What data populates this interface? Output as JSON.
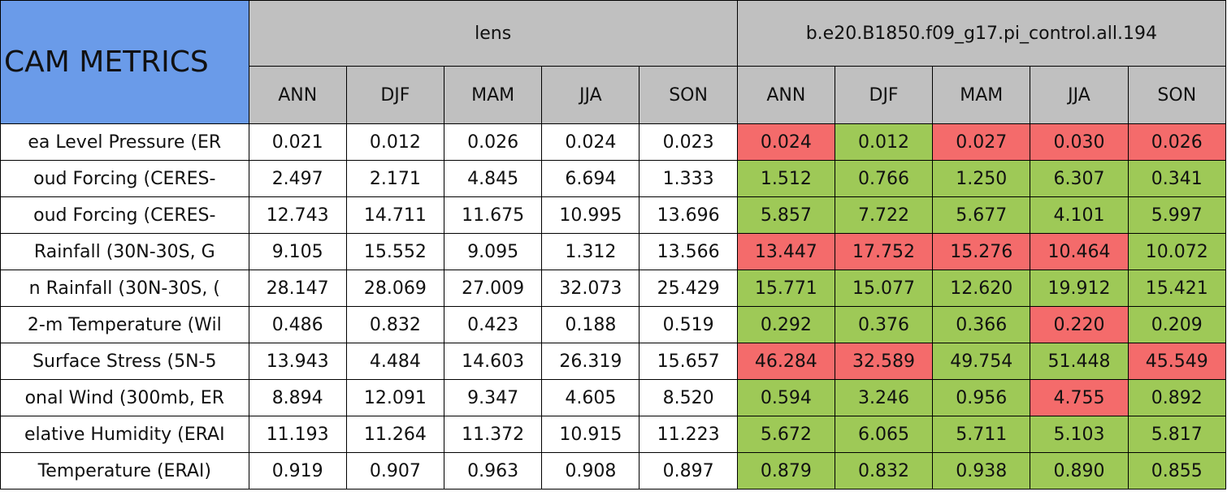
{
  "table": {
    "corner": "CAM METRICS",
    "groups": [
      "lens",
      "b.e20.B1850.f09_g17.pi_control.all.194"
    ],
    "seasons": [
      "ANN",
      "DJF",
      "MAM",
      "JJA",
      "SON"
    ],
    "colors": {
      "worse": "#f46b6b",
      "better": "#9ec957"
    },
    "rows": [
      {
        "label": "ea Level Pressure (ER",
        "lens": [
          "0.021",
          "0.012",
          "0.026",
          "0.024",
          "0.023"
        ],
        "control": [
          "0.024",
          "0.012",
          "0.027",
          "0.030",
          "0.026"
        ],
        "status": [
          "worse",
          "better",
          "worse",
          "worse",
          "worse"
        ]
      },
      {
        "label": "oud Forcing (CERES-",
        "lens": [
          "2.497",
          "2.171",
          "4.845",
          "6.694",
          "1.333"
        ],
        "control": [
          "1.512",
          "0.766",
          "1.250",
          "6.307",
          "0.341"
        ],
        "status": [
          "better",
          "better",
          "better",
          "better",
          "better"
        ]
      },
      {
        "label": "oud Forcing (CERES-",
        "lens": [
          "12.743",
          "14.711",
          "11.675",
          "10.995",
          "13.696"
        ],
        "control": [
          "5.857",
          "7.722",
          "5.677",
          "4.101",
          "5.997"
        ],
        "status": [
          "better",
          "better",
          "better",
          "better",
          "better"
        ]
      },
      {
        "label": "Rainfall (30N-30S, G",
        "lens": [
          "9.105",
          "15.552",
          "9.095",
          "1.312",
          "13.566"
        ],
        "control": [
          "13.447",
          "17.752",
          "15.276",
          "10.464",
          "10.072"
        ],
        "status": [
          "worse",
          "worse",
          "worse",
          "worse",
          "better"
        ]
      },
      {
        "label": "n Rainfall (30N-30S, (",
        "lens": [
          "28.147",
          "28.069",
          "27.009",
          "32.073",
          "25.429"
        ],
        "control": [
          "15.771",
          "15.077",
          "12.620",
          "19.912",
          "15.421"
        ],
        "status": [
          "better",
          "better",
          "better",
          "better",
          "better"
        ]
      },
      {
        "label": "2-m Temperature (Wil",
        "lens": [
          "0.486",
          "0.832",
          "0.423",
          "0.188",
          "0.519"
        ],
        "control": [
          "0.292",
          "0.376",
          "0.366",
          "0.220",
          "0.209"
        ],
        "status": [
          "better",
          "better",
          "better",
          "worse",
          "better"
        ]
      },
      {
        "label": "Surface Stress (5N-5",
        "lens": [
          "13.943",
          "4.484",
          "14.603",
          "26.319",
          "15.657"
        ],
        "control": [
          "46.284",
          "32.589",
          "49.754",
          "51.448",
          "45.549"
        ],
        "status": [
          "worse",
          "worse",
          "better",
          "better",
          "worse"
        ]
      },
      {
        "label": "onal Wind (300mb, ER",
        "lens": [
          "8.894",
          "12.091",
          "9.347",
          "4.605",
          "8.520"
        ],
        "control": [
          "0.594",
          "3.246",
          "0.956",
          "4.755",
          "0.892"
        ],
        "status": [
          "better",
          "better",
          "better",
          "worse",
          "better"
        ]
      },
      {
        "label": "elative Humidity (ERAI",
        "lens": [
          "11.193",
          "11.264",
          "11.372",
          "10.915",
          "11.223"
        ],
        "control": [
          "5.672",
          "6.065",
          "5.711",
          "5.103",
          "5.817"
        ],
        "status": [
          "better",
          "better",
          "better",
          "better",
          "better"
        ]
      },
      {
        "label": "Temperature (ERAI)",
        "lens": [
          "0.919",
          "0.907",
          "0.963",
          "0.908",
          "0.897"
        ],
        "control": [
          "0.879",
          "0.832",
          "0.938",
          "0.890",
          "0.855"
        ],
        "status": [
          "better",
          "better",
          "better",
          "better",
          "better"
        ]
      }
    ]
  }
}
